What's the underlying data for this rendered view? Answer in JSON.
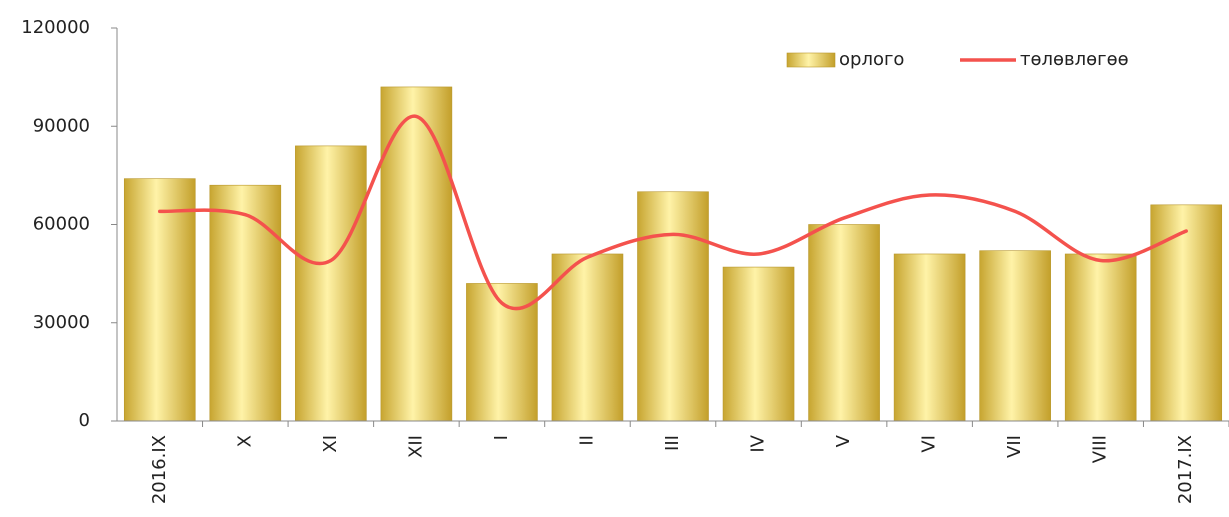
{
  "chart_data": {
    "type": "bar-line",
    "categories": [
      "2016.IX",
      "X",
      "XI",
      "XII",
      "I",
      "II",
      "III",
      "IV",
      "V",
      "VI",
      "VII",
      "VIII",
      "2017.IX"
    ],
    "series": [
      {
        "name": "орлого",
        "type": "bar",
        "color": "#e8c84a",
        "values": [
          74000,
          72000,
          84000,
          102000,
          42000,
          51000,
          70000,
          47000,
          60000,
          51000,
          52000,
          51000,
          66000
        ]
      },
      {
        "name": "төлөвлөгөө",
        "type": "line",
        "color": "#f4524d",
        "values": [
          64000,
          63000,
          49000,
          93000,
          36000,
          50000,
          57000,
          51000,
          62000,
          69000,
          64000,
          49000,
          58000
        ]
      }
    ],
    "ylim": [
      0,
      120000
    ],
    "yticks": [
      0,
      30000,
      60000,
      90000,
      120000
    ],
    "legend": "top-right",
    "grid": false
  }
}
